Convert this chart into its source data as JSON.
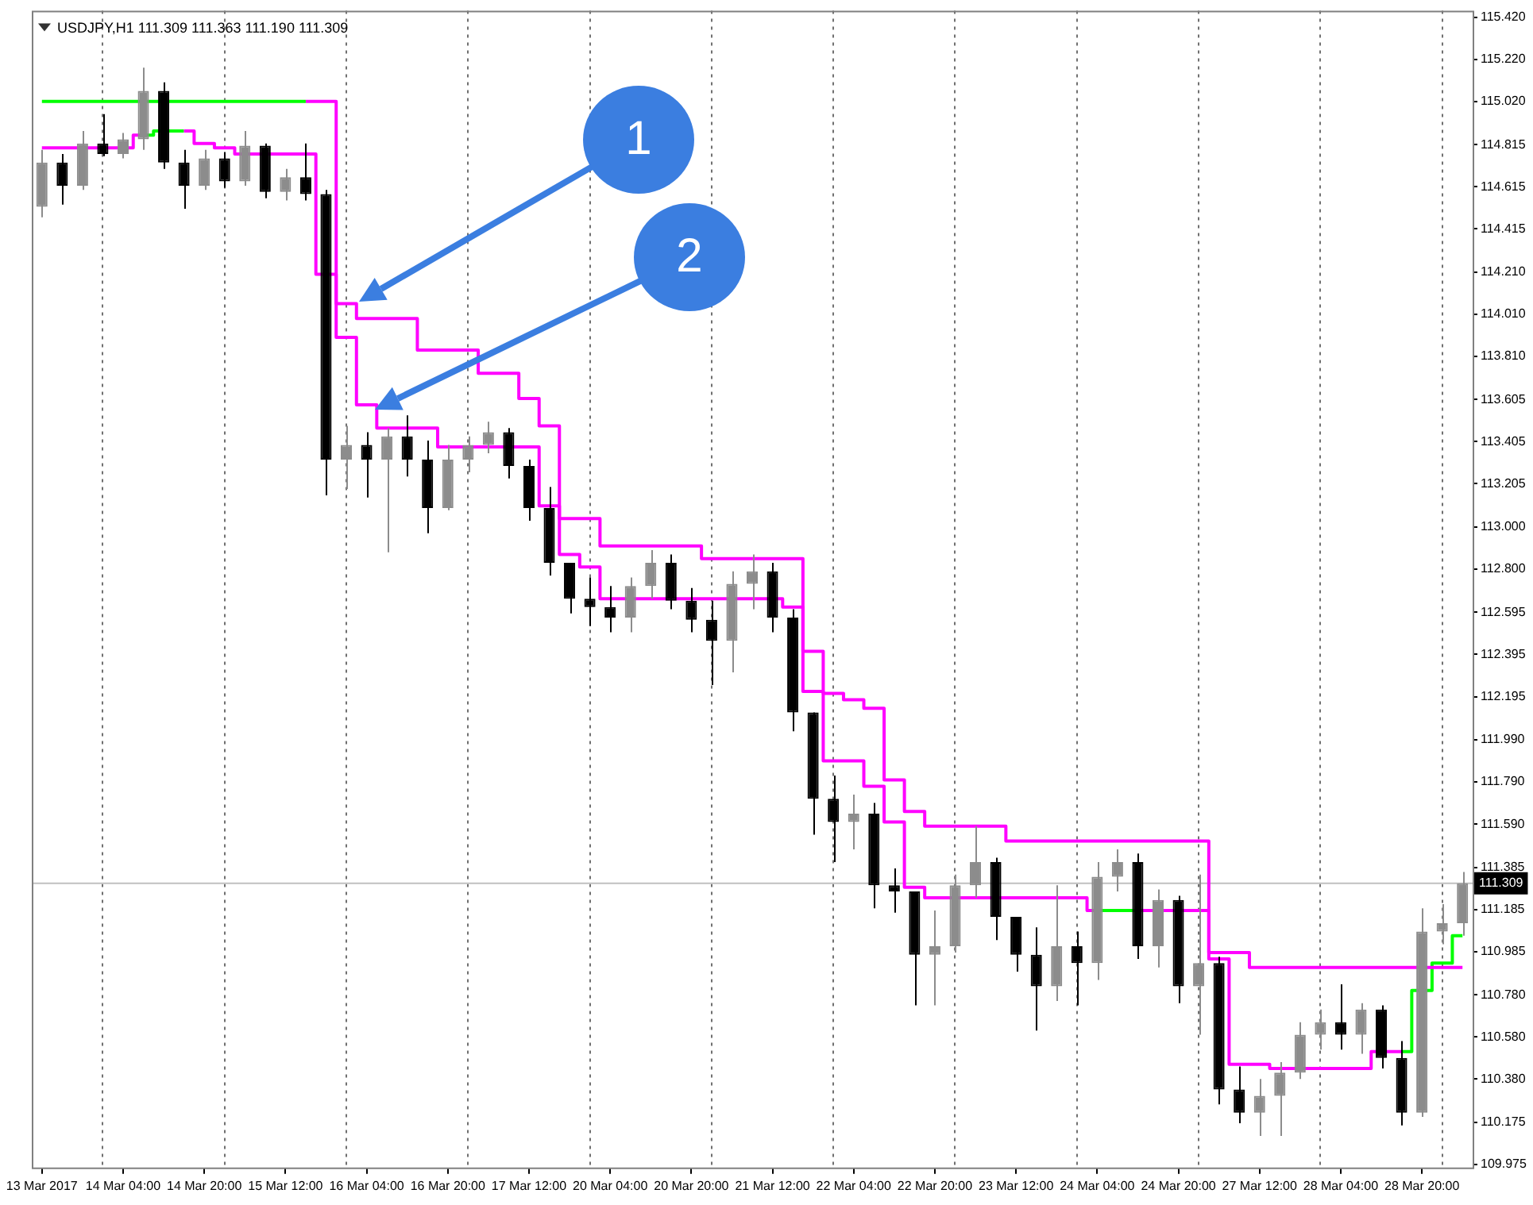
{
  "chart_data": {
    "type": "candlestick",
    "title": "USDJPY,H1 111.309 111.363 111.190 111.309",
    "categories": [
      "13 Mar 2017",
      null,
      null,
      null,
      "14 Mar 04:00",
      null,
      null,
      null,
      "14 Mar 20:00",
      null,
      null,
      null,
      "15 Mar 12:00",
      null,
      null,
      null,
      "16 Mar 04:00",
      null,
      null,
      null,
      "16 Mar 20:00",
      null,
      null,
      null,
      "17 Mar 12:00",
      null,
      null,
      null,
      "20 Mar 04:00",
      null,
      null,
      null,
      "20 Mar 20:00",
      null,
      null,
      null,
      "21 Mar 12:00",
      null,
      null,
      null,
      "22 Mar 04:00",
      null,
      null,
      null,
      "22 Mar 20:00",
      null,
      null,
      null,
      "23 Mar 12:00",
      null,
      null,
      null,
      "24 Mar 04:00",
      null,
      null,
      null,
      "24 Mar 20:00",
      null,
      null,
      null,
      "27 Mar 12:00",
      null,
      null,
      null,
      "28 Mar 04:00",
      null,
      null,
      null,
      "28 Mar 20:00",
      null,
      null
    ],
    "colors": [
      "#8c8c8c",
      "#000000",
      "#8c8c8c",
      "#000000",
      "#8c8c8c",
      "#8c8c8c",
      "#000000",
      "#000000",
      "#8c8c8c",
      "#000000",
      "#8c8c8c",
      "#000000",
      "#8c8c8c",
      "#000000",
      "#000000",
      "#8c8c8c",
      "#000000",
      "#8c8c8c",
      "#000000",
      "#000000",
      "#8c8c8c",
      "#8c8c8c",
      "#8c8c8c",
      "#000000",
      "#000000",
      "#000000",
      "#000000",
      "#000000",
      "#000000",
      "#8c8c8c",
      "#8c8c8c",
      "#000000",
      "#000000",
      "#000000",
      "#8c8c8c",
      "#8c8c8c",
      "#000000",
      "#000000",
      "#000000",
      "#000000",
      "#8c8c8c",
      "#000000",
      "#000000",
      "#000000",
      "#8c8c8c",
      "#8c8c8c",
      "#8c8c8c",
      "#000000",
      "#000000",
      "#000000",
      "#8c8c8c",
      "#000000",
      "#8c8c8c",
      "#8c8c8c",
      "#000000",
      "#8c8c8c",
      "#000000",
      "#8c8c8c",
      "#000000",
      "#000000",
      "#8c8c8c",
      "#8c8c8c",
      "#8c8c8c",
      "#8c8c8c",
      "#000000",
      "#8c8c8c",
      "#000000",
      "#000000",
      "#8c8c8c",
      "#8c8c8c",
      "#8c8c8c"
    ],
    "ohlc": [
      [
        114.52,
        114.79,
        114.47,
        114.73
      ],
      [
        114.73,
        114.77,
        114.53,
        114.62
      ],
      [
        114.62,
        114.88,
        114.6,
        114.82
      ],
      [
        114.82,
        114.96,
        114.76,
        114.77
      ],
      [
        114.77,
        114.87,
        114.75,
        114.84
      ],
      [
        114.84,
        115.18,
        114.79,
        115.07
      ],
      [
        115.07,
        115.11,
        114.7,
        114.73
      ],
      [
        114.73,
        114.79,
        114.51,
        114.62
      ],
      [
        114.62,
        114.79,
        114.6,
        114.75
      ],
      [
        114.75,
        114.78,
        114.61,
        114.64
      ],
      [
        114.64,
        114.88,
        114.62,
        114.81
      ],
      [
        114.81,
        114.82,
        114.56,
        114.59
      ],
      [
        114.59,
        114.7,
        114.55,
        114.66
      ],
      [
        114.66,
        114.82,
        114.55,
        114.58
      ],
      [
        114.58,
        114.6,
        113.15,
        113.32
      ],
      [
        113.32,
        113.48,
        113.18,
        113.39
      ],
      [
        113.39,
        113.45,
        113.14,
        113.32
      ],
      [
        113.32,
        113.47,
        112.88,
        113.43
      ],
      [
        113.43,
        113.53,
        113.24,
        113.32
      ],
      [
        113.32,
        113.41,
        112.97,
        113.09
      ],
      [
        113.09,
        113.39,
        113.08,
        113.32
      ],
      [
        113.32,
        113.43,
        113.26,
        113.39
      ],
      [
        113.39,
        113.5,
        113.35,
        113.45
      ],
      [
        113.45,
        113.47,
        113.23,
        113.29
      ],
      [
        113.29,
        113.32,
        113.03,
        113.09
      ],
      [
        113.09,
        113.19,
        112.77,
        112.83
      ],
      [
        112.83,
        112.83,
        112.59,
        112.66
      ],
      [
        112.66,
        112.76,
        112.53,
        112.62
      ],
      [
        112.62,
        112.72,
        112.5,
        112.57
      ],
      [
        112.57,
        112.76,
        112.5,
        112.72
      ],
      [
        112.72,
        112.89,
        112.66,
        112.83
      ],
      [
        112.83,
        112.87,
        112.61,
        112.65
      ],
      [
        112.65,
        112.71,
        112.5,
        112.56
      ],
      [
        112.56,
        112.65,
        112.25,
        112.46
      ],
      [
        112.46,
        112.79,
        112.31,
        112.73
      ],
      [
        112.73,
        112.87,
        112.61,
        112.79
      ],
      [
        112.79,
        112.83,
        112.5,
        112.57
      ],
      [
        112.57,
        112.61,
        112.03,
        112.12
      ],
      [
        112.12,
        112.12,
        111.54,
        111.71
      ],
      [
        111.71,
        111.82,
        111.41,
        111.6
      ],
      [
        111.6,
        111.73,
        111.47,
        111.64
      ],
      [
        111.64,
        111.69,
        111.19,
        111.3
      ],
      [
        111.3,
        111.38,
        111.17,
        111.27
      ],
      [
        111.27,
        111.27,
        110.73,
        110.97
      ],
      [
        110.97,
        111.18,
        110.73,
        111.01
      ],
      [
        111.01,
        111.35,
        110.98,
        111.3
      ],
      [
        111.3,
        111.58,
        111.24,
        111.41
      ],
      [
        111.41,
        111.43,
        111.04,
        111.15
      ],
      [
        111.15,
        111.15,
        110.89,
        110.97
      ],
      [
        110.97,
        111.1,
        110.61,
        110.82
      ],
      [
        110.82,
        111.3,
        110.75,
        111.01
      ],
      [
        111.01,
        111.08,
        110.73,
        110.93
      ],
      [
        110.93,
        111.41,
        110.85,
        111.34
      ],
      [
        111.34,
        111.47,
        111.27,
        111.41
      ],
      [
        111.41,
        111.45,
        110.95,
        111.01
      ],
      [
        111.01,
        111.28,
        110.91,
        111.23
      ],
      [
        111.23,
        111.25,
        110.74,
        110.82
      ],
      [
        110.82,
        111.35,
        110.59,
        110.93
      ],
      [
        110.93,
        110.96,
        110.26,
        110.33
      ],
      [
        110.33,
        110.44,
        110.17,
        110.22
      ],
      [
        110.22,
        110.38,
        110.11,
        110.3
      ],
      [
        110.3,
        110.46,
        110.11,
        110.41
      ],
      [
        110.41,
        110.65,
        110.38,
        110.59
      ],
      [
        110.59,
        110.71,
        110.52,
        110.65
      ],
      [
        110.65,
        110.83,
        110.52,
        110.59
      ],
      [
        110.59,
        110.74,
        110.5,
        110.71
      ],
      [
        110.71,
        110.73,
        110.43,
        110.48
      ],
      [
        110.48,
        110.56,
        110.16,
        110.22
      ],
      [
        110.22,
        111.19,
        110.2,
        111.08
      ],
      [
        111.08,
        111.21,
        111.02,
        111.12
      ],
      [
        111.12,
        111.363,
        111.06,
        111.309
      ]
    ],
    "series": [
      {
        "type": "step",
        "color": "#00ff00",
        "values": [
          115.02,
          115.02,
          115.02,
          115.02,
          115.02,
          115.02,
          115.02,
          115.02,
          115.02,
          115.02,
          115.02,
          115.02,
          115.02,
          115.02,
          null,
          null,
          null,
          null,
          null,
          null,
          null,
          null,
          null,
          null,
          null,
          null,
          null,
          null,
          null,
          null,
          null,
          null,
          null,
          null,
          null,
          null,
          null,
          null,
          null,
          null,
          null,
          null,
          null,
          null,
          null,
          null,
          null,
          null,
          null,
          null,
          null,
          null,
          null,
          null,
          null,
          null,
          null,
          null,
          null,
          null,
          null,
          null,
          null,
          null,
          null,
          null,
          null,
          null,
          null,
          null,
          null
        ]
      },
      {
        "type": "step",
        "color": "#ff00ff",
        "values": [
          null,
          null,
          null,
          null,
          null,
          null,
          null,
          null,
          null,
          null,
          null,
          null,
          null,
          115.02,
          115.02,
          114.06,
          113.99,
          113.99,
          113.99,
          113.84,
          113.84,
          113.84,
          113.73,
          113.73,
          113.61,
          113.48,
          113.04,
          113.04,
          112.91,
          112.91,
          112.91,
          112.91,
          112.91,
          112.85,
          112.85,
          112.85,
          112.85,
          112.85,
          112.41,
          112.21,
          112.18,
          112.14,
          111.8,
          111.65,
          111.58,
          111.58,
          111.58,
          111.58,
          111.51,
          111.51,
          111.51,
          111.51,
          111.51,
          111.51,
          111.51,
          111.51,
          111.51,
          111.51,
          110.98,
          110.98,
          110.91,
          110.91,
          110.91,
          110.91,
          110.91,
          110.91,
          110.91,
          110.91,
          110.91,
          110.91,
          110.91
        ]
      },
      {
        "type": "step",
        "color": "#ff00ff",
        "values": [
          114.8,
          114.8,
          114.8,
          114.8,
          114.8,
          114.86,
          null,
          114.88,
          114.82,
          114.8,
          114.77,
          114.77,
          114.77,
          114.77,
          114.2,
          113.9,
          113.58,
          113.47,
          113.47,
          113.47,
          113.38,
          113.38,
          113.38,
          113.38,
          113.38,
          113.1,
          112.87,
          112.81,
          112.66,
          112.66,
          112.66,
          112.66,
          112.66,
          112.66,
          112.66,
          112.66,
          112.66,
          112.62,
          112.22,
          111.89,
          111.89,
          111.77,
          111.6,
          111.29,
          111.24,
          111.24,
          111.24,
          111.24,
          111.24,
          111.24,
          111.24,
          111.24,
          111.18,
          null,
          111.18,
          111.18,
          111.18,
          111.18,
          110.95,
          110.45,
          110.45,
          110.43,
          110.43,
          110.43,
          110.43,
          110.43,
          110.51,
          110.51,
          null,
          null,
          null
        ]
      },
      {
        "type": "step",
        "color": "#00ff00",
        "values": [
          null,
          null,
          null,
          null,
          null,
          114.86,
          114.88,
          114.88,
          null,
          null,
          null,
          null,
          null,
          null,
          null,
          null,
          null,
          null,
          null,
          null,
          null,
          null,
          null,
          null,
          null,
          null,
          null,
          null,
          null,
          null,
          null,
          null,
          null,
          null,
          null,
          null,
          null,
          null,
          null,
          null,
          null,
          null,
          null,
          null,
          null,
          null,
          null,
          null,
          null,
          null,
          null,
          null,
          111.18,
          111.18,
          111.18,
          null,
          null,
          null,
          null,
          null,
          null,
          null,
          null,
          null,
          null,
          null,
          null,
          110.51,
          110.8,
          110.93,
          111.06
        ]
      }
    ],
    "ylim": [
      109.96,
      115.45
    ],
    "yticks": [
      {
        "value": 115.42,
        "label": "115.420"
      },
      {
        "value": 115.22,
        "label": "115.220"
      },
      {
        "value": 115.02,
        "label": "115.020"
      },
      114.815,
      114.615,
      114.415,
      {
        "value": 114.21,
        "label": "114.210"
      },
      {
        "value": 114.01,
        "label": "114.010"
      },
      {
        "value": 113.81,
        "label": "113.810"
      },
      113.605,
      113.405,
      113.205,
      {
        "value": 113,
        "label": "113.000"
      },
      {
        "value": 112.8,
        "label": "112.800"
      },
      112.595,
      112.395,
      112.195,
      {
        "value": 111.99,
        "label": "111.990"
      },
      {
        "value": 111.79,
        "label": "111.790"
      },
      {
        "value": 111.59,
        "label": "111.590"
      },
      111.385,
      111.185,
      110.985,
      {
        "value": 110.78,
        "label": "110.780"
      },
      {
        "value": 110.58,
        "label": "110.580"
      },
      {
        "value": 110.38,
        "label": "110.380"
      },
      110.175,
      109.975
    ],
    "ref_lines": [
      {
        "axis": "y",
        "value": 111.309,
        "label": "111.309",
        "color": "#c0c0c0"
      }
    ],
    "annotations": [
      "1",
      "2"
    ],
    "grid": "x",
    "marker": "none"
  }
}
